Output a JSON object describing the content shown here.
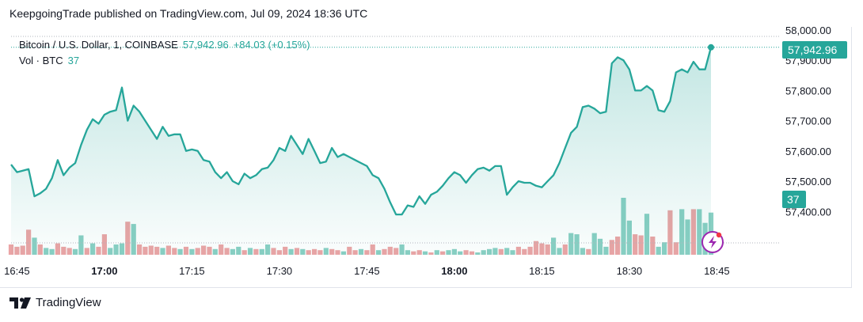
{
  "header": {
    "publisher_line": "KeepgoingTrade published on TradingView.com, Jul 09, 2024 18:36 UTC"
  },
  "legend": {
    "symbol": "Bitcoin / U.S. Dollar, 1, COINBASE",
    "price": "57,942.96",
    "change": "+84.03 (+0.15%)",
    "vol_label": "Vol · BTC",
    "vol_value": "37"
  },
  "price_tag": {
    "label": "57,942.96",
    "color": "#26a69a"
  },
  "volume_tag": {
    "label": "37",
    "color": "#26a69a"
  },
  "footer": {
    "brand": "TradingView"
  },
  "colors": {
    "line": "#26a69a",
    "up_volume": "#89cfc3",
    "down_volume": "#eba4a5",
    "alert": "#9c27b0"
  },
  "chart_data": {
    "type": "line",
    "title": "Bitcoin / U.S. Dollar, 1, COINBASE",
    "xlabel": "",
    "ylabel": "",
    "ylim": [
      57330,
      58000
    ],
    "grid": false,
    "y_ticks": [
      "58,000.00",
      "57,900.00",
      "57,800.00",
      "57,700.00",
      "57,600.00",
      "57,500.00",
      "57,400.00"
    ],
    "x_ticks": [
      {
        "label": "16:45",
        "bold": false
      },
      {
        "label": "17:00",
        "bold": true
      },
      {
        "label": "17:15",
        "bold": false
      },
      {
        "label": "17:30",
        "bold": false
      },
      {
        "label": "17:45",
        "bold": false
      },
      {
        "label": "18:00",
        "bold": true
      },
      {
        "label": "18:15",
        "bold": false
      },
      {
        "label": "18:30",
        "bold": false
      },
      {
        "label": "18:45",
        "bold": false
      }
    ],
    "x_start": "16:44",
    "x_end": "18:35",
    "x_unit": "minutes",
    "series": [
      {
        "values": [
          57555,
          57530,
          57535,
          57540,
          57450,
          57460,
          57475,
          57510,
          57570,
          57520,
          57545,
          57560,
          57620,
          57670,
          57705,
          57690,
          57720,
          57730,
          57735,
          57810,
          57700,
          57750,
          57730,
          57700,
          57670,
          57640,
          57680,
          57650,
          57655,
          57655,
          57600,
          57605,
          57600,
          57570,
          57565,
          57530,
          57510,
          57530,
          57500,
          57490,
          57525,
          57510,
          57520,
          57540,
          57545,
          57570,
          57610,
          57600,
          57650,
          57620,
          57590,
          57640,
          57600,
          57560,
          57565,
          57610,
          57580,
          57590,
          57580,
          57570,
          57560,
          57550,
          57520,
          57510,
          57475,
          57430,
          57390,
          57390,
          57420,
          57415,
          57450,
          57425,
          57455,
          57465,
          57485,
          57510,
          57530,
          57520,
          57495,
          57520,
          57540,
          57545,
          57535,
          57550,
          57550,
          57455,
          57480,
          57500,
          57495,
          57495,
          57485,
          57480,
          57500,
          57520,
          57560,
          57610,
          57660,
          57680,
          57745,
          57750,
          57740,
          57725,
          57730,
          57890,
          57910,
          57900,
          57870,
          57800,
          57800,
          57815,
          57800,
          57735,
          57730,
          57765,
          57860,
          57870,
          57860,
          57895,
          57870,
          57870,
          57943
        ],
        "volumes": [
          {
            "v": 9,
            "d": "down"
          },
          {
            "v": 7,
            "d": "down"
          },
          {
            "v": 8,
            "d": "down"
          },
          {
            "v": 22,
            "d": "down"
          },
          {
            "v": 15,
            "d": "up"
          },
          {
            "v": 9,
            "d": "down"
          },
          {
            "v": 6,
            "d": "up"
          },
          {
            "v": 5,
            "d": "up"
          },
          {
            "v": 10,
            "d": "down"
          },
          {
            "v": 7,
            "d": "down"
          },
          {
            "v": 6,
            "d": "down"
          },
          {
            "v": 5,
            "d": "up"
          },
          {
            "v": 17,
            "d": "up"
          },
          {
            "v": 6,
            "d": "down"
          },
          {
            "v": 10,
            "d": "up"
          },
          {
            "v": 7,
            "d": "down"
          },
          {
            "v": 18,
            "d": "down"
          },
          {
            "v": 6,
            "d": "up"
          },
          {
            "v": 9,
            "d": "up"
          },
          {
            "v": 10,
            "d": "up"
          },
          {
            "v": 29,
            "d": "down"
          },
          {
            "v": 27,
            "d": "up"
          },
          {
            "v": 9,
            "d": "down"
          },
          {
            "v": 7,
            "d": "down"
          },
          {
            "v": 8,
            "d": "down"
          },
          {
            "v": 7,
            "d": "down"
          },
          {
            "v": 6,
            "d": "up"
          },
          {
            "v": 8,
            "d": "down"
          },
          {
            "v": 6,
            "d": "down"
          },
          {
            "v": 5,
            "d": "up"
          },
          {
            "v": 7,
            "d": "down"
          },
          {
            "v": 5,
            "d": "up"
          },
          {
            "v": 6,
            "d": "down"
          },
          {
            "v": 8,
            "d": "down"
          },
          {
            "v": 7,
            "d": "down"
          },
          {
            "v": 5,
            "d": "up"
          },
          {
            "v": 9,
            "d": "down"
          },
          {
            "v": 6,
            "d": "down"
          },
          {
            "v": 5,
            "d": "up"
          },
          {
            "v": 7,
            "d": "up"
          },
          {
            "v": 4,
            "d": "down"
          },
          {
            "v": 6,
            "d": "up"
          },
          {
            "v": 5,
            "d": "down"
          },
          {
            "v": 5,
            "d": "up"
          },
          {
            "v": 9,
            "d": "up"
          },
          {
            "v": 6,
            "d": "down"
          },
          {
            "v": 4,
            "d": "down"
          },
          {
            "v": 7,
            "d": "down"
          },
          {
            "v": 5,
            "d": "up"
          },
          {
            "v": 6,
            "d": "down"
          },
          {
            "v": 5,
            "d": "up"
          },
          {
            "v": 4,
            "d": "down"
          },
          {
            "v": 5,
            "d": "down"
          },
          {
            "v": 4,
            "d": "down"
          },
          {
            "v": 6,
            "d": "up"
          },
          {
            "v": 5,
            "d": "down"
          },
          {
            "v": 4,
            "d": "down"
          },
          {
            "v": 3,
            "d": "up"
          },
          {
            "v": 7,
            "d": "down"
          },
          {
            "v": 4,
            "d": "down"
          },
          {
            "v": 5,
            "d": "up"
          },
          {
            "v": 4,
            "d": "down"
          },
          {
            "v": 9,
            "d": "down"
          },
          {
            "v": 4,
            "d": "up"
          },
          {
            "v": 5,
            "d": "down"
          },
          {
            "v": 7,
            "d": "down"
          },
          {
            "v": 6,
            "d": "down"
          },
          {
            "v": 9,
            "d": "up"
          },
          {
            "v": 4,
            "d": "up"
          },
          {
            "v": 3,
            "d": "down"
          },
          {
            "v": 4,
            "d": "down"
          },
          {
            "v": 3,
            "d": "up"
          },
          {
            "v": 2,
            "d": "down"
          },
          {
            "v": 4,
            "d": "up"
          },
          {
            "v": 3,
            "d": "down"
          },
          {
            "v": 4,
            "d": "up"
          },
          {
            "v": 5,
            "d": "up"
          },
          {
            "v": 3,
            "d": "up"
          },
          {
            "v": 4,
            "d": "down"
          },
          {
            "v": 3,
            "d": "down"
          },
          {
            "v": 2,
            "d": "up"
          },
          {
            "v": 4,
            "d": "up"
          },
          {
            "v": 5,
            "d": "up"
          },
          {
            "v": 6,
            "d": "up"
          },
          {
            "v": 5,
            "d": "down"
          },
          {
            "v": 6,
            "d": "up"
          },
          {
            "v": 4,
            "d": "up"
          },
          {
            "v": 7,
            "d": "down"
          },
          {
            "v": 5,
            "d": "down"
          },
          {
            "v": 7,
            "d": "down"
          },
          {
            "v": 12,
            "d": "down"
          },
          {
            "v": 10,
            "d": "down"
          },
          {
            "v": 9,
            "d": "down"
          },
          {
            "v": 15,
            "d": "up"
          },
          {
            "v": 6,
            "d": "up"
          },
          {
            "v": 9,
            "d": "down"
          },
          {
            "v": 19,
            "d": "up"
          },
          {
            "v": 18,
            "d": "up"
          },
          {
            "v": 6,
            "d": "up"
          },
          {
            "v": 5,
            "d": "down"
          },
          {
            "v": 19,
            "d": "up"
          },
          {
            "v": 14,
            "d": "up"
          },
          {
            "v": 7,
            "d": "up"
          },
          {
            "v": 13,
            "d": "down"
          },
          {
            "v": 16,
            "d": "down"
          },
          {
            "v": 50,
            "d": "up"
          },
          {
            "v": 30,
            "d": "up"
          },
          {
            "v": 18,
            "d": "down"
          },
          {
            "v": 17,
            "d": "down"
          },
          {
            "v": 36,
            "d": "up"
          },
          {
            "v": 16,
            "d": "down"
          },
          {
            "v": 7,
            "d": "up"
          },
          {
            "v": 11,
            "d": "up"
          },
          {
            "v": 39,
            "d": "down"
          },
          {
            "v": 11,
            "d": "down"
          },
          {
            "v": 40,
            "d": "up"
          },
          {
            "v": 31,
            "d": "up"
          },
          {
            "v": 40,
            "d": "down"
          },
          {
            "v": 40,
            "d": "up"
          },
          {
            "v": 28,
            "d": "up"
          },
          {
            "v": 37,
            "d": "up"
          }
        ]
      }
    ]
  }
}
